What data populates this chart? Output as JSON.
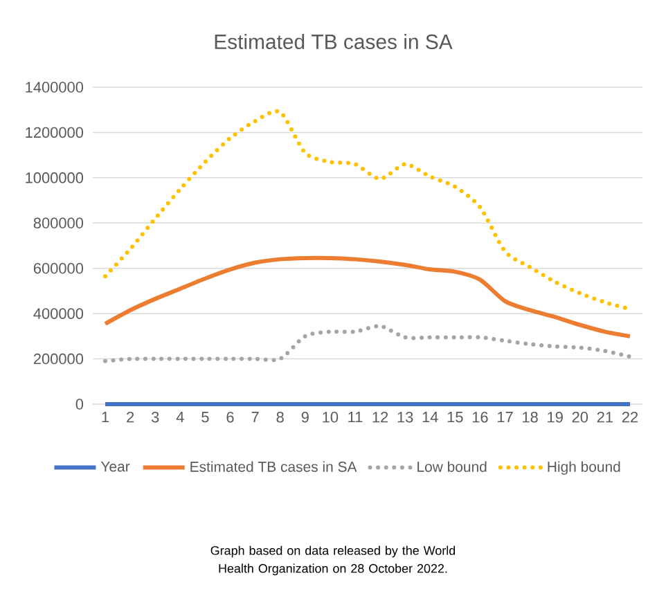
{
  "chart_data": {
    "type": "line",
    "title": "Estimated TB cases in SA",
    "categories": [
      "1",
      "2",
      "3",
      "4",
      "5",
      "6",
      "7",
      "8",
      "9",
      "10",
      "11",
      "12",
      "13",
      "14",
      "15",
      "16",
      "17",
      "18",
      "19",
      "20",
      "21",
      "22"
    ],
    "series": [
      {
        "name": "Year",
        "color": "#4472c4",
        "line_style": "solid",
        "values": [
          0,
          0,
          0,
          0,
          0,
          0,
          0,
          0,
          0,
          0,
          0,
          0,
          0,
          0,
          0,
          0,
          0,
          0,
          0,
          0,
          0,
          0
        ]
      },
      {
        "name": "Estimated TB cases in SA",
        "color": "#ed7d31",
        "line_style": "solid",
        "values": [
          355000,
          415000,
          465000,
          510000,
          555000,
          595000,
          625000,
          640000,
          645000,
          645000,
          640000,
          630000,
          615000,
          595000,
          585000,
          550000,
          455000,
          415000,
          385000,
          350000,
          320000,
          300000
        ]
      },
      {
        "name": "Low bound",
        "color": "#a5a5a5",
        "line_style": "dotted",
        "values": [
          190000,
          200000,
          200000,
          200000,
          200000,
          200000,
          200000,
          200000,
          300000,
          320000,
          320000,
          345000,
          295000,
          295000,
          295000,
          295000,
          280000,
          265000,
          255000,
          250000,
          235000,
          210000
        ]
      },
      {
        "name": "High bound",
        "color": "#ffc000",
        "line_style": "dotted",
        "values": [
          565000,
          685000,
          820000,
          950000,
          1070000,
          1175000,
          1250000,
          1290000,
          1110000,
          1070000,
          1060000,
          995000,
          1060000,
          1005000,
          960000,
          870000,
          675000,
          605000,
          540000,
          490000,
          450000,
          420000
        ]
      }
    ],
    "ylim": [
      0,
      1400000
    ],
    "yticks": [
      0,
      200000,
      400000,
      600000,
      800000,
      1000000,
      1200000,
      1400000
    ],
    "grid": "y",
    "legend": "bottom",
    "annotations": [
      "Graph based on data released by the World Health Organization on 28 October 2022."
    ]
  }
}
